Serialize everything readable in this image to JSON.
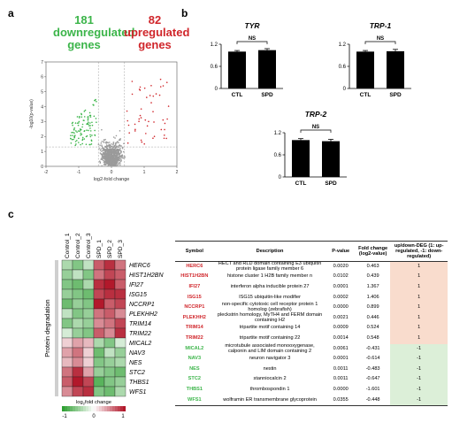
{
  "panels": {
    "a": "a",
    "b": "b",
    "c": "c"
  },
  "volcano": {
    "down_count": "181",
    "down_label_line1": "downregulated",
    "down_label_line2": "genes",
    "up_count": "82",
    "up_label_line1": "upregulated",
    "up_label_line2": "genes",
    "xlabel": "log2-fold change",
    "ylabel": "-log10(p-value)",
    "xticks": [
      "-2",
      "-1",
      "0",
      "1",
      "2"
    ],
    "yticks": [
      "0",
      "1",
      "2",
      "3",
      "4",
      "5",
      "6",
      "7"
    ],
    "colors": {
      "down": "#3cb54a",
      "up": "#d0262b",
      "ns": "#9a9a9a"
    }
  },
  "bar_charts": [
    {
      "title": "TYR",
      "categories": [
        "CTL",
        "SPD"
      ],
      "values": [
        1.0,
        1.04
      ],
      "errors": [
        0.03,
        0.04
      ],
      "sig": "NS",
      "yticks": [
        "0",
        "0.6",
        "1.2"
      ]
    },
    {
      "title": "TRP-1",
      "categories": [
        "CTL",
        "SPD"
      ],
      "values": [
        1.0,
        1.01
      ],
      "errors": [
        0.03,
        0.05
      ],
      "sig": "NS",
      "yticks": [
        "0",
        "0.6",
        "1.2"
      ]
    },
    {
      "title": "TRP-2",
      "categories": [
        "CTL",
        "SPD"
      ],
      "values": [
        1.0,
        0.97
      ],
      "errors": [
        0.04,
        0.05
      ],
      "sig": "NS",
      "yticks": [
        "0",
        "0.6",
        "1.2"
      ]
    }
  ],
  "heatmap": {
    "columns": [
      "Control_1",
      "Control_2",
      "Control_3",
      "SPD_1",
      "SPD_2",
      "SPD_3"
    ],
    "row_labels": [
      "HERC6",
      "HIST1H2BN",
      "IFI27",
      "ISG15",
      "NCCRP1",
      "PLEKHH2",
      "TRIM14",
      "TRIM22",
      "MICAL2",
      "NAV3",
      "NES",
      "STC2",
      "THBS1",
      "WFS1"
    ],
    "side_label": "Protein degradation",
    "legend_title": "log2fold change",
    "legend_ticks": [
      "-1",
      "0",
      "1"
    ],
    "values": [
      [
        -0.4,
        -0.6,
        -0.3,
        0.7,
        0.9,
        0.6
      ],
      [
        -0.5,
        -0.3,
        -0.6,
        0.6,
        0.8,
        0.7
      ],
      [
        -0.6,
        -0.7,
        -0.4,
        0.9,
        1.0,
        0.7
      ],
      [
        -0.5,
        -0.6,
        -0.7,
        0.8,
        0.9,
        0.9
      ],
      [
        -0.7,
        -0.5,
        -0.6,
        1.0,
        0.7,
        0.8
      ],
      [
        -0.3,
        -0.6,
        -0.5,
        0.6,
        0.7,
        0.5
      ],
      [
        -0.6,
        -0.4,
        -0.5,
        0.5,
        0.6,
        0.8
      ],
      [
        -0.2,
        -0.5,
        -0.6,
        0.7,
        0.5,
        0.9
      ],
      [
        0.2,
        0.4,
        0.3,
        -0.4,
        -0.6,
        -0.2
      ],
      [
        0.4,
        0.6,
        0.2,
        -0.7,
        -0.3,
        -0.5
      ],
      [
        0.3,
        0.5,
        0.2,
        -0.6,
        -0.5,
        -0.4
      ],
      [
        0.6,
        0.9,
        0.4,
        -0.5,
        -0.6,
        -0.7
      ],
      [
        0.7,
        1.0,
        0.8,
        -0.8,
        -0.6,
        -0.5
      ],
      [
        0.5,
        0.8,
        0.9,
        -0.6,
        -0.7,
        -0.4
      ]
    ]
  },
  "table": {
    "headers": [
      "Symbol",
      "Description",
      "P-value",
      "Fold change (log2-value)",
      "up/down-DEG (1: up-regulated, -1: down-regulated)"
    ],
    "rows": [
      {
        "symbol": "HERC6",
        "description": "HECT and RLD domain containing E3 ubiquitin protein ligase family member 6",
        "pvalue": "0.0020",
        "fold": "0.463",
        "deg": "1",
        "dir": "up"
      },
      {
        "symbol": "HIST1H2BN",
        "description": "histone cluster 1 H2B family member n",
        "pvalue": "0.0102",
        "fold": "0.439",
        "deg": "1",
        "dir": "up"
      },
      {
        "symbol": "IFI27",
        "description": "interferon alpha inducible protein 27",
        "pvalue": "0.0001",
        "fold": "1.367",
        "deg": "1",
        "dir": "up"
      },
      {
        "symbol": "ISG15",
        "description": "ISG15 ubiquitin-like modifier",
        "pvalue": "0.0002",
        "fold": "1.406",
        "deg": "1",
        "dir": "up"
      },
      {
        "symbol": "NCCRP1",
        "description": "non-specific cytotoxic cell receptor protein 1 homolog (zebrafish)",
        "pvalue": "0.0000",
        "fold": "0.899",
        "deg": "1",
        "dir": "up"
      },
      {
        "symbol": "PLEKHH2",
        "description": "pleckstrin homology, MyTH4 and FERM domain containing H2",
        "pvalue": "0.0021",
        "fold": "0.446",
        "deg": "1",
        "dir": "up"
      },
      {
        "symbol": "TRIM14",
        "description": "tripartite motif containing 14",
        "pvalue": "0.0009",
        "fold": "0.524",
        "deg": "1",
        "dir": "up"
      },
      {
        "symbol": "TRIM22",
        "description": "tripartite motif containing 22",
        "pvalue": "0.0014",
        "fold": "0.548",
        "deg": "1",
        "dir": "up"
      },
      {
        "symbol": "MICAL2",
        "description": "microtubule associated monooxygenase, calponin and LIM domain containing 2",
        "pvalue": "0.0061",
        "fold": "-0.431",
        "deg": "-1",
        "dir": "down"
      },
      {
        "symbol": "NAV3",
        "description": "neuron navigator 3",
        "pvalue": "0.0001",
        "fold": "-0.614",
        "deg": "-1",
        "dir": "down"
      },
      {
        "symbol": "NES",
        "description": "nestin",
        "pvalue": "0.0011",
        "fold": "-0.483",
        "deg": "-1",
        "dir": "down"
      },
      {
        "symbol": "STC2",
        "description": "stanniocalcin 2",
        "pvalue": "0.0011",
        "fold": "-0.647",
        "deg": "-1",
        "dir": "down"
      },
      {
        "symbol": "THBS1",
        "description": "thrombospondin 1",
        "pvalue": "0.0000",
        "fold": "-1.601",
        "deg": "-1",
        "dir": "down"
      },
      {
        "symbol": "WFS1",
        "description": "wolframin ER transmembrane glycoprotein",
        "pvalue": "0.0355",
        "fold": "-0.448",
        "deg": "-1",
        "dir": "down"
      }
    ]
  },
  "chart_data": [
    {
      "type": "scatter",
      "xlabel": "log2-fold change",
      "ylabel": "-log10(p-value)",
      "xlim": [
        -2,
        2
      ],
      "ylim": [
        0,
        7
      ],
      "series": [
        {
          "name": "downregulated",
          "count": 181
        },
        {
          "name": "upregulated",
          "count": 82
        }
      ]
    },
    {
      "type": "bar",
      "title": "TYR",
      "categories": [
        "CTL",
        "SPD"
      ],
      "values": [
        1.0,
        1.04
      ],
      "ylim": [
        0,
        1.2
      ]
    },
    {
      "type": "bar",
      "title": "TRP-1",
      "categories": [
        "CTL",
        "SPD"
      ],
      "values": [
        1.0,
        1.01
      ],
      "ylim": [
        0,
        1.2
      ]
    },
    {
      "type": "bar",
      "title": "TRP-2",
      "categories": [
        "CTL",
        "SPD"
      ],
      "values": [
        1.0,
        0.97
      ],
      "ylim": [
        0,
        1.2
      ]
    }
  ]
}
